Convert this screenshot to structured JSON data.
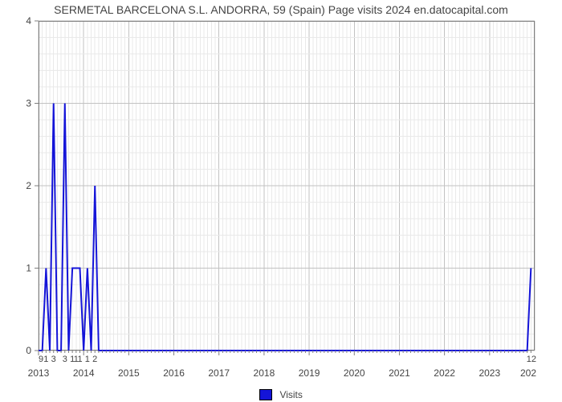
{
  "title": "SERMETAL BARCELONA S.L. ANDORRA, 59 (Spain) Page visits 2024 en.datocapital.com",
  "chart": {
    "type": "line",
    "background_color": "#ffffff",
    "plot_border_color": "#7f7f7f",
    "plot_border_width": 1.2,
    "minor_grid_color": "#e9e9e9",
    "major_grid_color": "#c2c2c2",
    "line_color": "#1414d8",
    "line_width": 2.0,
    "axis_tick_color": "#7f7f7f",
    "axis_label_color": "#444444",
    "axis_fontsize": 12,
    "title_fontsize": 14,
    "title_color": "#444444",
    "ylim": [
      0,
      4
    ],
    "ytick_step_major": 1,
    "yticks": [
      0,
      1,
      2,
      3,
      4
    ],
    "x_year_ticks": [
      2013,
      2014,
      2015,
      2016,
      2017,
      2018,
      2019,
      2020,
      2021,
      2022,
      2023
    ],
    "x_months_per_year": 12,
    "x_index_range": [
      0,
      132
    ],
    "data_values": [
      0,
      0,
      1,
      0,
      3,
      0,
      0,
      3,
      0,
      1,
      1,
      1,
      0,
      1,
      0,
      2,
      0,
      0,
      0,
      0,
      0,
      0,
      0,
      0,
      0,
      0,
      0,
      0,
      0,
      0,
      0,
      0,
      0,
      0,
      0,
      0,
      0,
      0,
      0,
      0,
      0,
      0,
      0,
      0,
      0,
      0,
      0,
      0,
      0,
      0,
      0,
      0,
      0,
      0,
      0,
      0,
      0,
      0,
      0,
      0,
      0,
      0,
      0,
      0,
      0,
      0,
      0,
      0,
      0,
      0,
      0,
      0,
      0,
      0,
      0,
      0,
      0,
      0,
      0,
      0,
      0,
      0,
      0,
      0,
      0,
      0,
      0,
      0,
      0,
      0,
      0,
      0,
      0,
      0,
      0,
      0,
      0,
      0,
      0,
      0,
      0,
      0,
      0,
      0,
      0,
      0,
      0,
      0,
      0,
      0,
      0,
      0,
      0,
      0,
      0,
      0,
      0,
      0,
      0,
      0,
      0,
      0,
      0,
      0,
      0,
      0,
      0,
      0,
      0,
      0,
      0,
      1
    ],
    "bottom_value_label_color": "#444444",
    "bottom_value_label_fontsize": 11,
    "bottom_left_extra_label": "9",
    "bottom_right_extra_label": "12",
    "x_right_partial_label": "202",
    "legend": {
      "label": "Visits",
      "swatch_fill": "#1414d8",
      "swatch_border": "#000000"
    }
  }
}
